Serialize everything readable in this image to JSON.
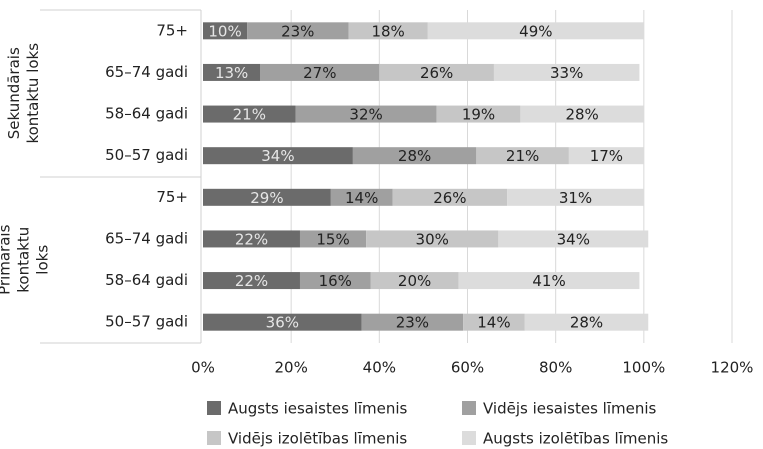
{
  "chart_data": {
    "type": "stacked_barh",
    "groups": [
      {
        "lines": [
          "Sekundārais",
          "kontaktu loks"
        ]
      },
      {
        "lines": [
          "Primārais",
          "kontaktu",
          "loks"
        ]
      }
    ],
    "categories": [
      "75+",
      "65–74 gadi",
      "58–64 gadi",
      "50–57 gadi",
      "75+",
      "65–74 gadi",
      "58–64 gadi",
      "50–57 gadi"
    ],
    "series": [
      {
        "name": "Augsts iesaistes līmenis",
        "color": "#6b6b6b",
        "values": [
          10,
          13,
          21,
          34,
          29,
          22,
          22,
          36
        ],
        "value_labels": [
          "10%",
          "13%",
          "21%",
          "34%",
          "29%",
          "22%",
          "22%",
          "36%"
        ]
      },
      {
        "name": "Vidējs iesaistes līmenis",
        "color": "#a0a0a0",
        "values": [
          23,
          27,
          32,
          28,
          14,
          15,
          16,
          23
        ],
        "value_labels": [
          "23%",
          "27%",
          "32%",
          "28%",
          "14%",
          "15%",
          "16%",
          "23%"
        ]
      },
      {
        "name": "Vidējs izolētības līmenis",
        "color": "#c6c6c6",
        "values": [
          18,
          26,
          19,
          21,
          26,
          30,
          20,
          14
        ],
        "value_labels": [
          "18%",
          "26%",
          "19%",
          "21%",
          "26%",
          "30%",
          "20%",
          "14%"
        ]
      },
      {
        "name": "Augsts izolētības līmenis",
        "color": "#dcdcdc",
        "values": [
          49,
          33,
          28,
          17,
          31,
          34,
          41,
          28
        ],
        "value_labels": [
          "49%",
          "33%",
          "28%",
          "17%",
          "31%",
          "34%",
          "41%",
          "28%"
        ]
      }
    ],
    "xlim": [
      0,
      120
    ],
    "xticks": [
      {
        "value": 0,
        "label": "0%"
      },
      {
        "value": 20,
        "label": "20%"
      },
      {
        "value": 40,
        "label": "40%"
      },
      {
        "value": 60,
        "label": "60%"
      },
      {
        "value": 80,
        "label": "80%"
      },
      {
        "value": 100,
        "label": "100%"
      },
      {
        "value": 120,
        "label": "120%"
      }
    ],
    "grid": true
  }
}
